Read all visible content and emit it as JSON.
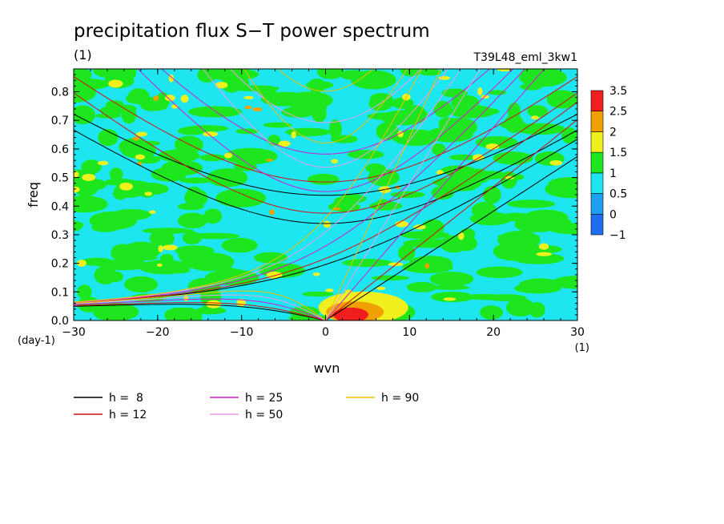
{
  "chart_data": {
    "type": "heatmap",
    "title": "precipitation flux S−T power spectrum",
    "subtitle": "(1)",
    "run_label": "T39L48_eml_3kw1",
    "xlabel": "wvn",
    "ylabel": "freq",
    "x_unit": "(1)",
    "y_unit": "(day-1)",
    "xlim": [
      -30,
      30
    ],
    "ylim": [
      0,
      0.88
    ],
    "x_ticks": [
      -30,
      -20,
      -10,
      0,
      10,
      20,
      30
    ],
    "x_tick_labels": [
      "−30",
      "−20",
      "−10",
      "0",
      "10",
      "20",
      "30"
    ],
    "y_ticks": [
      0.0,
      0.1,
      0.2,
      0.3,
      0.4,
      0.5,
      0.6,
      0.7,
      0.8
    ],
    "y_tick_labels": [
      "0.0",
      "0.1",
      "0.2",
      "0.3",
      "0.4",
      "0.5",
      "0.6",
      "0.7",
      "0.8"
    ],
    "colorbar": {
      "levels": [
        -1,
        0,
        0.5,
        1,
        1.5,
        2,
        2.5,
        3.5
      ],
      "level_labels": [
        "−1",
        "0",
        "0.5",
        "1",
        "1.5",
        "2",
        "2.5",
        "3.5"
      ],
      "colors": [
        "#1e6ff0",
        "#1ea0f0",
        "#1ee6f0",
        "#1ee61e",
        "#f0f01e",
        "#f0a000",
        "#f01e1e"
      ]
    },
    "field_description_levels": {
      "background": 0.5,
      "high_region": 2.5
    },
    "dispersion_curves": [
      {
        "label": "h =  8",
        "h": 8,
        "color": "#000000"
      },
      {
        "label": "h = 12",
        "h": 12,
        "color": "#d01010"
      },
      {
        "label": "h = 25",
        "h": 25,
        "color": "#d01ad0"
      },
      {
        "label": "h = 50",
        "h": 50,
        "color": "#e8a0e8"
      },
      {
        "label": "h = 90",
        "h": 90,
        "color": "#f0c000"
      }
    ]
  }
}
